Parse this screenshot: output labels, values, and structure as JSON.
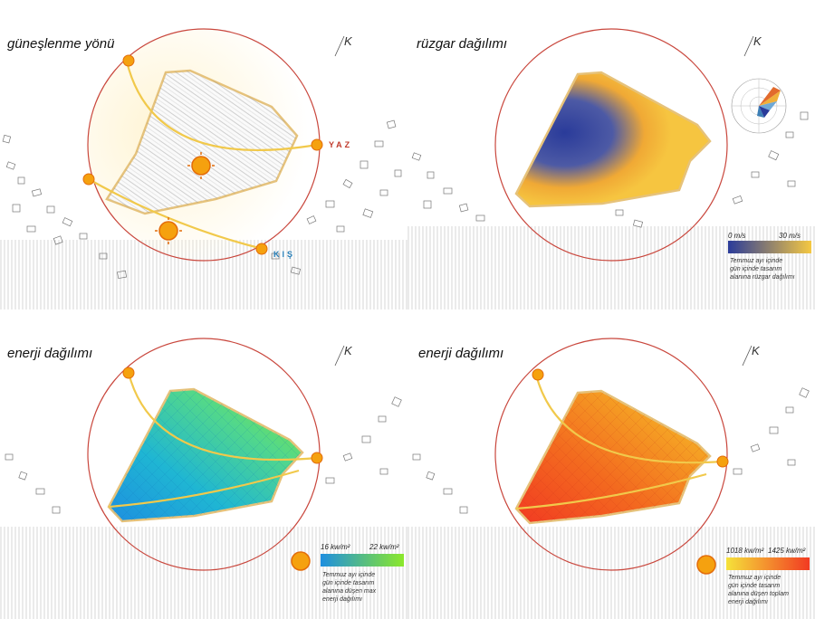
{
  "panels": {
    "sun": {
      "title": "güneşlenme yönü",
      "north_label": "K",
      "summer_label": "YAZ",
      "winter_label": "KIŞ"
    },
    "wind": {
      "title": "rüzgar dağılımı",
      "north_label": "K",
      "legend": {
        "min_label": "0 m/s",
        "max_label": "30 m/s",
        "note": [
          "Temmuz ayı içinde",
          "gün içinde tasarım",
          "alanına rüzgar dağılımı"
        ],
        "colors": [
          "#2a3b9a",
          "#f5c842"
        ]
      }
    },
    "energy_max": {
      "title": "enerji dağılımı",
      "north_label": "K",
      "legend": {
        "min_label": "16 kw/m²",
        "max_label": "22 kw/m²",
        "note": [
          "Temmuz ayı içinde",
          "gün içinde tasarım",
          "alanına düşen max",
          "enerji dağılımı"
        ],
        "colors": [
          "#1e8fe0",
          "#8be82a"
        ]
      }
    },
    "energy_total": {
      "title": "enerji dağılımı",
      "north_label": "K",
      "legend": {
        "min_label": "1018 kw/m²",
        "max_label": "1425 kw/m²",
        "note": [
          "Temmuz ayı içinde",
          "gün içinde tasarım",
          "alanına düşen toplam",
          "enerji dağılımı"
        ],
        "colors": [
          "#f5e23a",
          "#f23a22"
        ]
      }
    }
  }
}
